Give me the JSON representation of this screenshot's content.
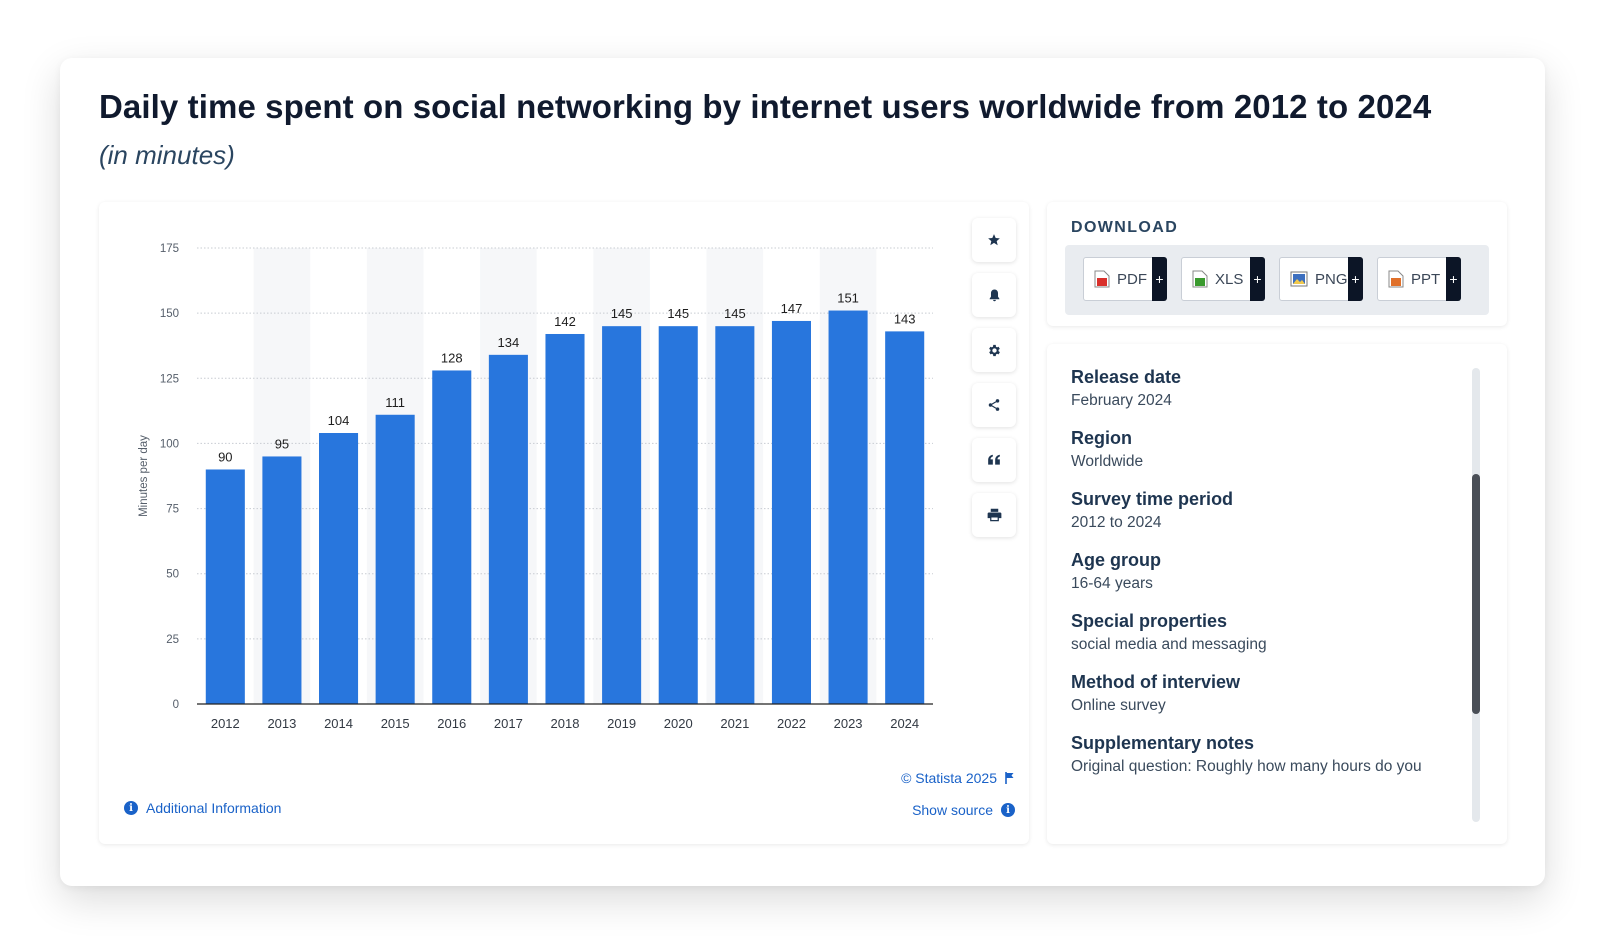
{
  "title": "Daily time spent on social networking by internet users worldwide from 2012 to 2024",
  "subtitle": "(in minutes)",
  "chart_data": {
    "type": "bar",
    "categories": [
      "2012",
      "2013",
      "2014",
      "2015",
      "2016",
      "2017",
      "2018",
      "2019",
      "2020",
      "2021",
      "2022",
      "2023",
      "2024"
    ],
    "values": [
      90,
      95,
      104,
      111,
      128,
      134,
      142,
      145,
      145,
      145,
      147,
      151,
      143
    ],
    "ylabel": "Minutes per day",
    "xlabel": "",
    "ylim": [
      0,
      175
    ],
    "yticks": [
      0,
      25,
      50,
      75,
      100,
      125,
      150,
      175
    ],
    "grid": true,
    "bar_color": "#2876dd"
  },
  "tools": [
    {
      "name": "star",
      "icon": "star-icon"
    },
    {
      "name": "bell",
      "icon": "bell-icon"
    },
    {
      "name": "settings",
      "icon": "gear-icon"
    },
    {
      "name": "share",
      "icon": "share-icon"
    },
    {
      "name": "cite",
      "icon": "quote-icon"
    },
    {
      "name": "print",
      "icon": "print-icon"
    }
  ],
  "credit": "© Statista 2025",
  "show_source": "Show source",
  "additional_info": "Additional Information",
  "download": {
    "title": "DOWNLOAD",
    "formats": [
      {
        "label": "PDF",
        "color": "#d9302b"
      },
      {
        "label": "XLS",
        "color": "#3a9a2e"
      },
      {
        "label": "PNG",
        "color": "#3c6fbf"
      },
      {
        "label": "PPT",
        "color": "#e0702a"
      }
    ]
  },
  "info": [
    {
      "label": "Release date",
      "value": "February 2024"
    },
    {
      "label": "Region",
      "value": "Worldwide"
    },
    {
      "label": "Survey time period",
      "value": "2012 to 2024"
    },
    {
      "label": "Age group",
      "value": "16-64 years"
    },
    {
      "label": "Special properties",
      "value": "social media and messaging"
    },
    {
      "label": "Method of interview",
      "value": "Online survey"
    },
    {
      "label": "Supplementary notes",
      "value": "Original question: Roughly how many hours do you"
    }
  ],
  "colors": {
    "accent": "#1a62c8",
    "heading": "#101a2e"
  }
}
